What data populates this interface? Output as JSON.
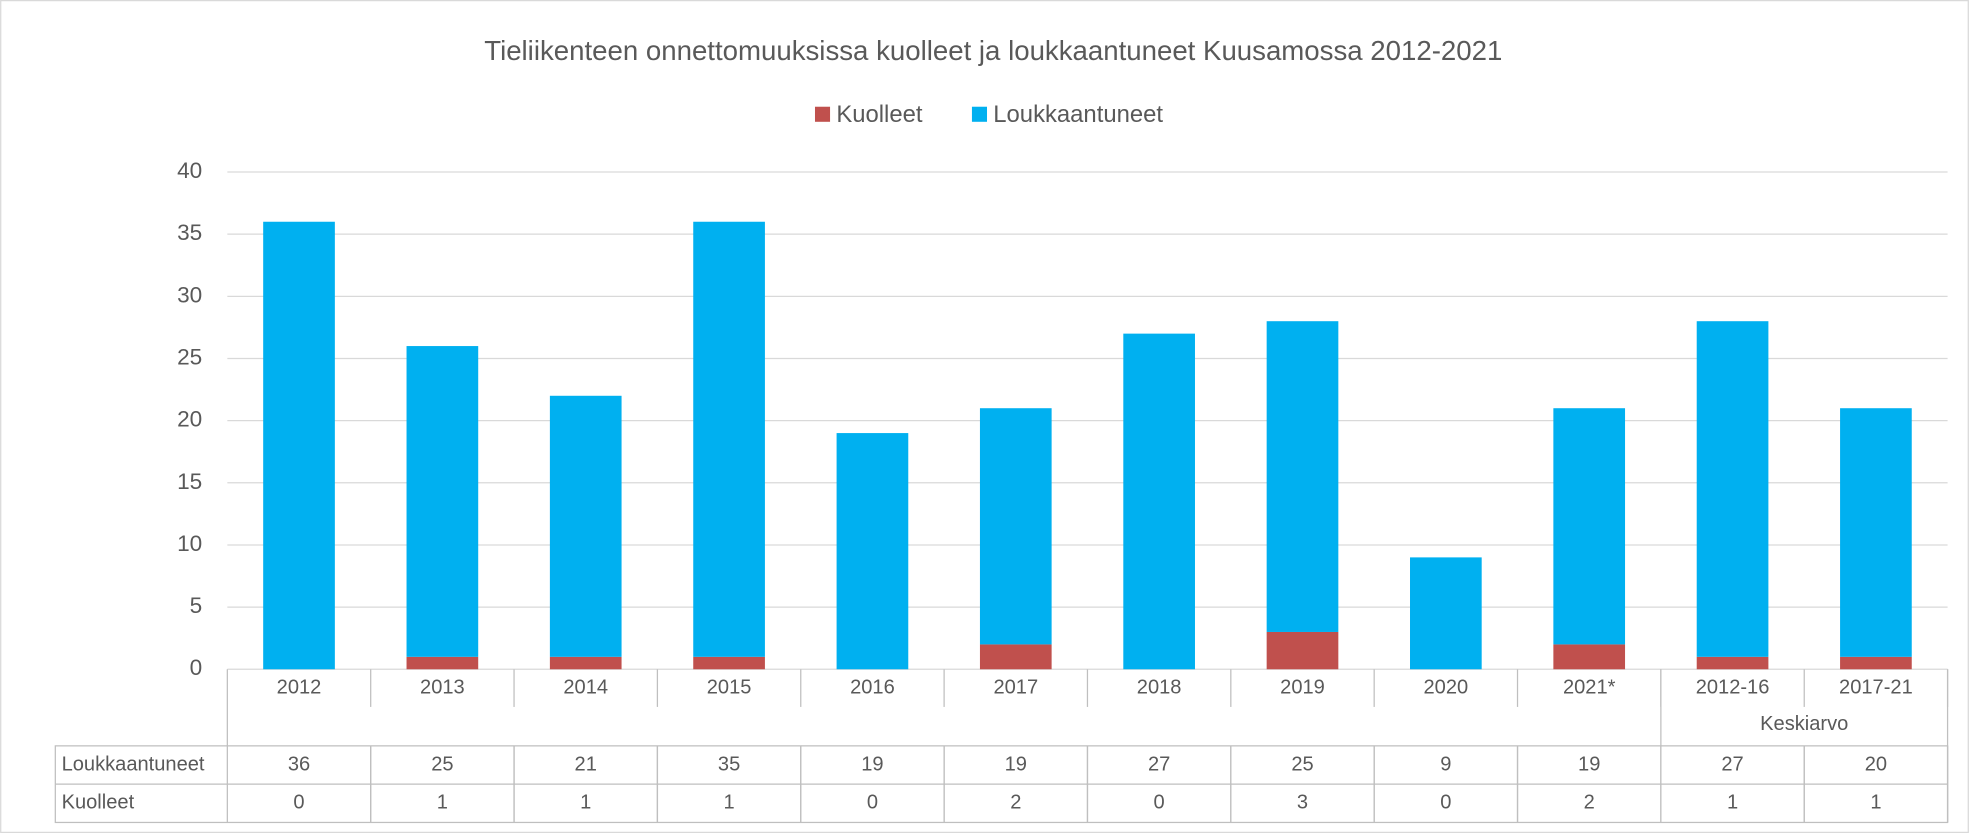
{
  "chart_data": {
    "type": "stacked_bar",
    "title": "Tieliikenteen onnettomuuksissa kuolleet ja loukkaantuneet Kuusamossa 2012-2021",
    "categories": [
      "2012",
      "2013",
      "2014",
      "2015",
      "2016",
      "2017",
      "2018",
      "2019",
      "2020",
      "2021*",
      "2012-16",
      "2017-21"
    ],
    "category_groups": [
      {
        "label": "Keskiarvo",
        "start": "2012-16",
        "end": "2017-21"
      }
    ],
    "series": [
      {
        "name": "Kuolleet",
        "color": "#c0504d",
        "values": [
          0,
          1,
          1,
          1,
          0,
          2,
          0,
          3,
          0,
          2,
          1,
          1
        ]
      },
      {
        "name": "Loukkaantuneet",
        "color": "#00b0f0",
        "values": [
          36,
          25,
          21,
          35,
          19,
          19,
          27,
          25,
          9,
          19,
          27,
          20
        ]
      }
    ],
    "ylim": [
      0,
      40
    ],
    "yticks": [
      0,
      5,
      10,
      15,
      20,
      25,
      30,
      35,
      40
    ],
    "grid": true,
    "legend": "top",
    "data_table": true
  }
}
